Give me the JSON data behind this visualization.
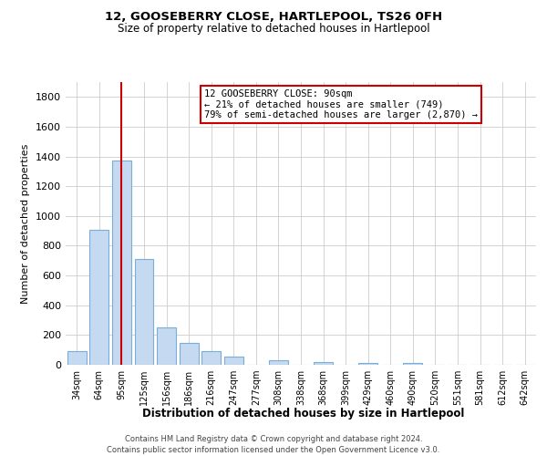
{
  "title": "12, GOOSEBERRY CLOSE, HARTLEPOOL, TS26 0FH",
  "subtitle": "Size of property relative to detached houses in Hartlepool",
  "xlabel": "Distribution of detached houses by size in Hartlepool",
  "ylabel": "Number of detached properties",
  "bar_labels": [
    "34sqm",
    "64sqm",
    "95sqm",
    "125sqm",
    "156sqm",
    "186sqm",
    "216sqm",
    "247sqm",
    "277sqm",
    "308sqm",
    "338sqm",
    "368sqm",
    "399sqm",
    "429sqm",
    "460sqm",
    "490sqm",
    "520sqm",
    "551sqm",
    "581sqm",
    "612sqm",
    "642sqm"
  ],
  "bar_values": [
    90,
    910,
    1370,
    710,
    250,
    145,
    90,
    55,
    0,
    30,
    0,
    20,
    0,
    15,
    0,
    15,
    0,
    0,
    0,
    0,
    0
  ],
  "bar_color": "#c5d9f0",
  "bar_edge_color": "#7aadda",
  "ylim": [
    0,
    1900
  ],
  "yticks": [
    0,
    200,
    400,
    600,
    800,
    1000,
    1200,
    1400,
    1600,
    1800
  ],
  "vline_x_index": 2,
  "vline_color": "#cc0000",
  "annotation_title": "12 GOOSEBERRY CLOSE: 90sqm",
  "annotation_line1": "← 21% of detached houses are smaller (749)",
  "annotation_line2": "79% of semi-detached houses are larger (2,870) →",
  "annotation_box_color": "#ffffff",
  "annotation_box_edge": "#cc0000",
  "footer_line1": "Contains HM Land Registry data © Crown copyright and database right 2024.",
  "footer_line2": "Contains public sector information licensed under the Open Government Licence v3.0.",
  "background_color": "#ffffff",
  "grid_color": "#cccccc"
}
